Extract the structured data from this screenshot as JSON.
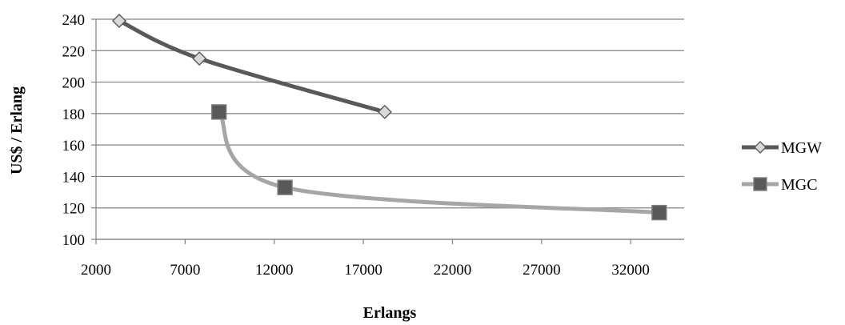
{
  "chart_data": {
    "type": "scatter",
    "title": "",
    "xlabel": "Erlangs",
    "ylabel": "US$ / Erlang",
    "xlim": [
      2000,
      35000
    ],
    "ylim": [
      100,
      240
    ],
    "xticks": [
      2000,
      7000,
      12000,
      17000,
      22000,
      27000,
      32000
    ],
    "yticks": [
      100,
      120,
      140,
      160,
      180,
      200,
      220,
      240
    ],
    "grid": "horizontal",
    "legend": "right",
    "smooth_lines": true,
    "series": [
      {
        "name": "MGW",
        "color": "#595959",
        "marker": "diamond",
        "marker_fill": "#d9d9d9",
        "x": [
          3300,
          7800,
          18200
        ],
        "y": [
          239,
          215,
          181
        ]
      },
      {
        "name": "MGC",
        "color": "#a6a6a6",
        "marker": "square",
        "marker_fill": "#595959",
        "x": [
          8900,
          12600,
          33600
        ],
        "y": [
          181,
          133,
          117
        ]
      }
    ]
  }
}
